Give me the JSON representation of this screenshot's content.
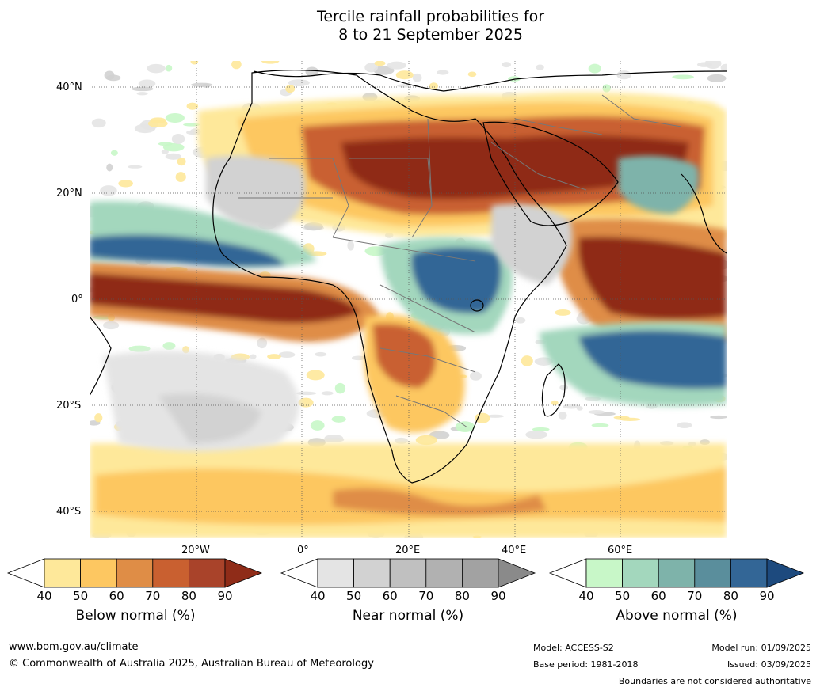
{
  "title_line1": "Tercile rainfall probabilities for",
  "title_line2": "8 to 21 September 2025",
  "map": {
    "lat_labels": [
      "40°N",
      "20°N",
      "0°",
      "20°S",
      "40°S"
    ],
    "lon_labels": [
      "20°W",
      "0°",
      "20°E",
      "40°E",
      "60°E"
    ],
    "colors": {
      "below": [
        "#ffffff",
        "#fee89a",
        "#fdc761",
        "#df8d46",
        "#c96030",
        "#a9432a",
        "#8f2c18"
      ],
      "near": [
        "#ffffff",
        "#e4e4e4",
        "#d2d2d2",
        "#c0c0c0",
        "#b1b1b1",
        "#a2a2a2",
        "#8a8a8a"
      ],
      "above": [
        "#ffffff",
        "#c8f7c8",
        "#a3d7bd",
        "#7eb3aa",
        "#5a8e9c",
        "#336696",
        "#1d4a7e"
      ]
    }
  },
  "colorbars": [
    {
      "name": "below",
      "title": "Below normal (%)",
      "ticks": [
        "40",
        "50",
        "60",
        "70",
        "80",
        "90"
      ]
    },
    {
      "name": "near",
      "title": "Near normal (%)",
      "ticks": [
        "40",
        "50",
        "60",
        "70",
        "80",
        "90"
      ]
    },
    {
      "name": "above",
      "title": "Above normal (%)",
      "ticks": [
        "40",
        "50",
        "60",
        "70",
        "80",
        "90"
      ]
    }
  ],
  "footer": {
    "url": "www.bom.gov.au/climate",
    "copyright": "© Commonwealth of Australia 2025, Australian Bureau of Meteorology",
    "model": "Model: ACCESS-S2",
    "base_period": "Base period: 1981-2018",
    "model_run": "Model run: 01/09/2025",
    "issued": "Issued: 03/09/2025",
    "boundaries_note": "Boundaries are not considered authoritative"
  }
}
